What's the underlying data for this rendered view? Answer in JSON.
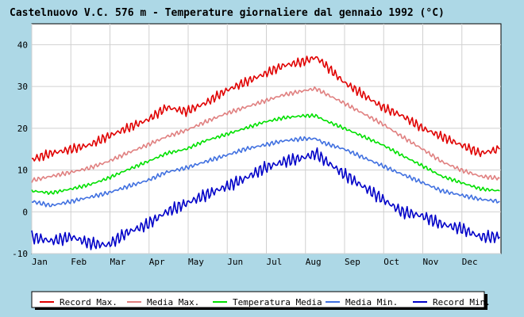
{
  "chart_data": {
    "type": "line",
    "title": "Castelnuovo V.C. 576 m - Temperature giornaliere dal gennaio 1992 (°C)",
    "xlabel": "",
    "ylabel": "",
    "x_ticks": [
      "Jan",
      "Feb",
      "Mar",
      "Apr",
      "May",
      "Jun",
      "Jul",
      "Aug",
      "Sep",
      "Oct",
      "Nov",
      "Dec"
    ],
    "x_range": [
      1,
      366
    ],
    "ylim": [
      -10,
      45
    ],
    "y_ticks": [
      "-10",
      "0",
      "10",
      "20",
      "30",
      "40"
    ],
    "grid": true,
    "legend_position": "bottom",
    "background": "#ffffff",
    "series": [
      {
        "name": "Record Max.",
        "color": "#e00000",
        "x": [
          1,
          16,
          32,
          46,
          60,
          75,
          91,
          106,
          121,
          136,
          152,
          167,
          182,
          197,
          213,
          222,
          228,
          244,
          259,
          274,
          289,
          305,
          320,
          335,
          350,
          365
        ],
        "values": [
          12.5,
          14,
          15,
          16,
          18,
          20,
          22,
          25,
          24,
          26,
          29,
          31,
          33,
          35,
          36,
          37,
          35.5,
          31,
          28,
          25,
          23,
          20,
          18,
          16,
          14,
          15
        ]
      },
      {
        "name": "Media Max.",
        "color": "#e08080",
        "x": [
          1,
          16,
          32,
          46,
          60,
          75,
          91,
          106,
          121,
          136,
          152,
          167,
          182,
          197,
          213,
          222,
          228,
          244,
          259,
          274,
          289,
          305,
          320,
          335,
          350,
          365
        ],
        "values": [
          7.5,
          8.5,
          9.5,
          10.5,
          12,
          14,
          16,
          18,
          19.5,
          21.5,
          23.5,
          25,
          26.5,
          28,
          29,
          29.5,
          28.5,
          26,
          23.5,
          21,
          18,
          15,
          12,
          10,
          8.5,
          8
        ]
      },
      {
        "name": "Temperatura Media",
        "color": "#00e000",
        "x": [
          1,
          16,
          32,
          46,
          60,
          75,
          91,
          106,
          121,
          136,
          152,
          167,
          182,
          197,
          213,
          222,
          228,
          244,
          259,
          274,
          289,
          305,
          320,
          335,
          350,
          365
        ],
        "values": [
          5,
          4.5,
          5.5,
          6.5,
          8,
          10,
          12,
          14,
          15,
          17,
          18.5,
          20,
          21.5,
          22.5,
          23,
          23,
          22,
          20,
          18,
          16,
          13.5,
          11,
          8.5,
          7,
          5.5,
          5
        ]
      },
      {
        "name": "Media Min.",
        "color": "#4070e0",
        "x": [
          1,
          16,
          32,
          46,
          60,
          75,
          91,
          106,
          121,
          136,
          152,
          167,
          182,
          197,
          213,
          222,
          228,
          244,
          259,
          274,
          289,
          305,
          320,
          335,
          350,
          365
        ],
        "values": [
          2.5,
          1.5,
          2.5,
          3.5,
          4.5,
          6,
          7.5,
          9.5,
          10.5,
          12,
          13.5,
          15,
          16,
          17,
          17.5,
          17.5,
          16.5,
          15,
          13,
          11,
          9,
          7,
          5,
          4,
          3,
          2.5
        ]
      },
      {
        "name": "Record Min.",
        "color": "#0000c8",
        "x": [
          1,
          16,
          32,
          46,
          60,
          75,
          91,
          106,
          121,
          136,
          152,
          167,
          182,
          197,
          213,
          222,
          228,
          244,
          259,
          274,
          289,
          305,
          320,
          335,
          350,
          365
        ],
        "values": [
          -6,
          -7,
          -6,
          -7.5,
          -8,
          -5,
          -3,
          0,
          2,
          4,
          6,
          8,
          10.5,
          12,
          13,
          14,
          12.5,
          9,
          6,
          3,
          0,
          -1,
          -3,
          -4,
          -6,
          -6
        ]
      }
    ]
  }
}
